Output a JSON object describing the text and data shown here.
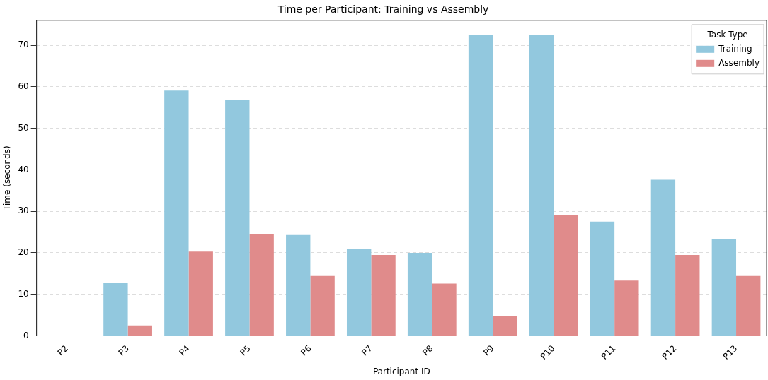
{
  "chart_data": {
    "type": "bar",
    "title": "Time per Participant: Training vs Assembly",
    "xlabel": "Participant ID",
    "ylabel": "Time (seconds)",
    "legend_title": "Task Type",
    "categories": [
      "P2",
      "P3",
      "P4",
      "P5",
      "P6",
      "P7",
      "P8",
      "P9",
      "P10",
      "P11",
      "P12",
      "P13"
    ],
    "series": [
      {
        "name": "Training",
        "color": "#92c8de",
        "values": [
          0,
          12.8,
          59.1,
          56.9,
          24.3,
          21.0,
          20.0,
          72.4,
          72.4,
          27.5,
          37.6,
          23.3
        ]
      },
      {
        "name": "Assembly",
        "color": "#e08b8b",
        "values": [
          0,
          2.5,
          20.3,
          24.5,
          14.4,
          19.5,
          12.6,
          4.7,
          29.2,
          13.3,
          19.5,
          14.4
        ]
      }
    ],
    "ylim": [
      0,
      76
    ],
    "yticks": [
      0,
      10,
      20,
      30,
      40,
      50,
      60,
      70
    ],
    "grid": "y",
    "legend": "top right"
  }
}
